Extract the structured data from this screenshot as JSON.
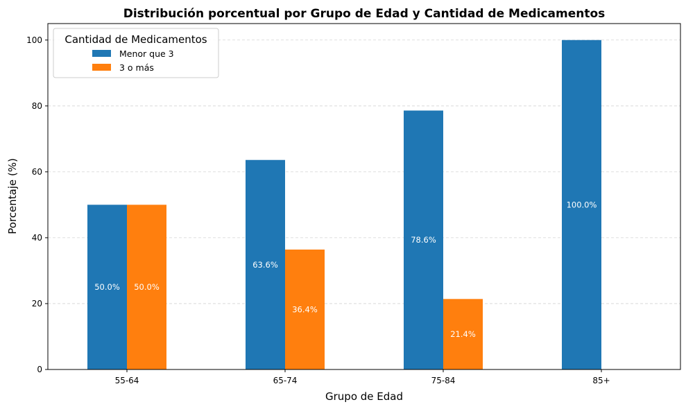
{
  "chart_data": {
    "type": "bar",
    "title": "Distribución porcentual por Grupo de Edad y Cantidad de Medicamentos",
    "xlabel": "Grupo de Edad",
    "ylabel": "Porcentaje (%)",
    "categories": [
      "55-64",
      "65-74",
      "75-84",
      "85+"
    ],
    "series": [
      {
        "name": "Menor que 3",
        "color": "#1f77b4",
        "values": [
          50.0,
          63.6,
          78.6,
          100.0
        ],
        "labels": [
          "50.0%",
          "63.6%",
          "78.6%",
          "100.0%"
        ]
      },
      {
        "name": "3 o más",
        "color": "#ff7f0e",
        "values": [
          50.0,
          36.4,
          21.4,
          0.0
        ],
        "labels": [
          "50.0%",
          "36.4%",
          "21.4%",
          ""
        ]
      }
    ],
    "ylim": [
      0,
      105
    ],
    "yticks": [
      0,
      20,
      40,
      60,
      80,
      100
    ],
    "grid": true,
    "legend": {
      "title": "Cantidad de Medicamentos",
      "position": "top-left"
    }
  }
}
